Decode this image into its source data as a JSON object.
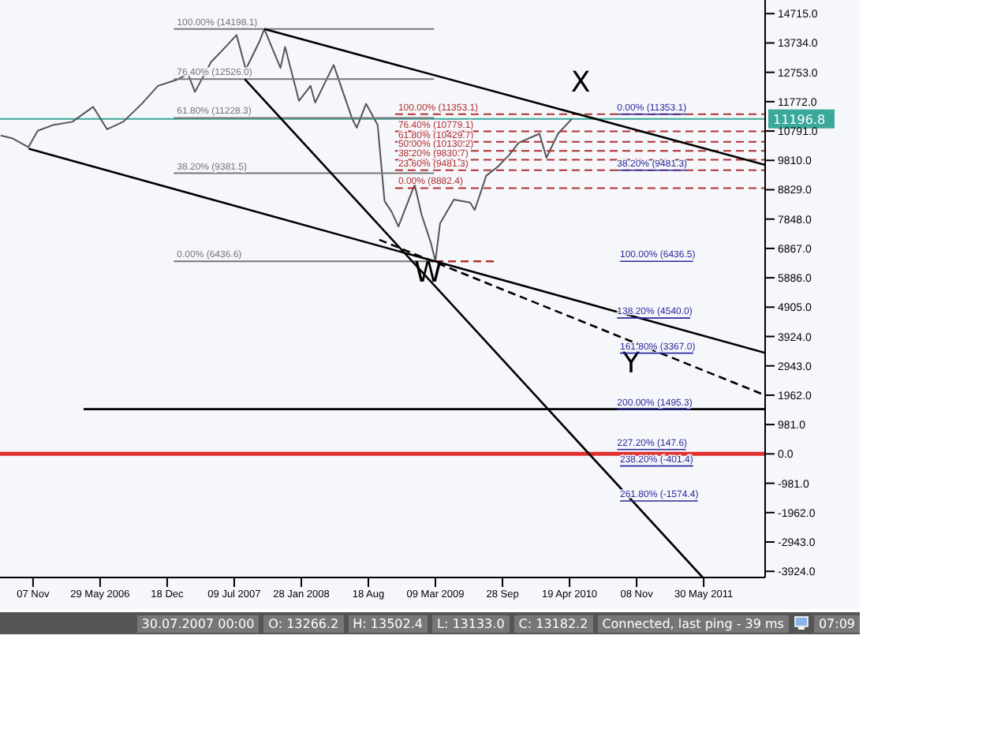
{
  "chart_data": {
    "type": "line",
    "xlim": [
      "2005-07-30",
      "2011-12-02"
    ],
    "xticks": [
      {
        "value": "2005-11-07",
        "label": "07 Nov"
      },
      {
        "value": "2006-05-29",
        "label": "29 May 2006"
      },
      {
        "value": "2006-12-18",
        "label": "18 Dec"
      },
      {
        "value": "2007-07-09",
        "label": "09 Jul 2007"
      },
      {
        "value": "2008-01-28",
        "label": "28 Jan 2008"
      },
      {
        "value": "2008-08-18",
        "label": "18 Aug"
      },
      {
        "value": "2009-03-09",
        "label": "09 Mar 2009"
      },
      {
        "value": "2009-09-28",
        "label": "28 Sep"
      },
      {
        "value": "2010-04-19",
        "label": "19 Apr 2010"
      },
      {
        "value": "2010-11-08",
        "label": "08 Nov"
      },
      {
        "value": "2011-05-30",
        "label": "30 May 2011"
      }
    ],
    "ylim": [
      -4130,
      15170
    ],
    "yticks": [
      {
        "value": 14715,
        "label": "14715.0"
      },
      {
        "value": 13734,
        "label": "13734.0"
      },
      {
        "value": 12753,
        "label": "12753.0"
      },
      {
        "value": 11772,
        "label": "11772.0"
      },
      {
        "value": 10791,
        "label": "10791.0"
      },
      {
        "value": 9810,
        "label": "9810.0"
      },
      {
        "value": 8829,
        "label": "8829.0"
      },
      {
        "value": 7848,
        "label": "7848.0"
      },
      {
        "value": 6867,
        "label": "6867.0"
      },
      {
        "value": 5886,
        "label": "5886.0"
      },
      {
        "value": 4905,
        "label": "4905.0"
      },
      {
        "value": 3924,
        "label": "3924.0"
      },
      {
        "value": 2943,
        "label": "2943.0"
      },
      {
        "value": 1962,
        "label": "1962.0"
      },
      {
        "value": 981,
        "label": "981.0"
      },
      {
        "value": 0,
        "label": "0.0"
      },
      {
        "value": -981,
        "label": "-981.0"
      },
      {
        "value": -1962,
        "label": "-1962.0"
      },
      {
        "value": -2943,
        "label": "-2943.0"
      },
      {
        "value": -3924,
        "label": "-3924.0"
      }
    ],
    "series": [
      {
        "color": "#555555",
        "x": [
          "2005-08-01",
          "2005-09-05",
          "2005-10-24",
          "2005-11-21",
          "2006-01-09",
          "2006-03-06",
          "2006-05-08",
          "2006-06-19",
          "2006-08-07",
          "2006-10-02",
          "2006-11-20",
          "2007-01-15",
          "2007-02-19",
          "2007-03-12",
          "2007-04-30",
          "2007-06-04",
          "2007-07-16",
          "2007-08-13",
          "2007-09-24",
          "2007-10-08",
          "2007-11-26",
          "2007-12-10",
          "2008-01-21",
          "2008-02-25",
          "2008-03-10",
          "2008-05-05",
          "2008-06-30",
          "2008-07-14",
          "2008-08-11",
          "2008-09-15",
          "2008-10-06",
          "2008-10-27",
          "2008-11-17",
          "2009-01-05",
          "2009-01-26",
          "2009-02-23",
          "2009-03-09",
          "2009-03-23",
          "2009-05-04",
          "2009-06-22",
          "2009-07-06",
          "2009-08-10",
          "2009-09-14",
          "2009-10-19",
          "2009-11-16",
          "2010-01-18",
          "2010-02-08",
          "2010-03-15",
          "2010-04-26"
        ],
        "values": [
          10640,
          10550,
          10250,
          10800,
          11000,
          11100,
          11600,
          10850,
          11100,
          11700,
          12300,
          12500,
          12700,
          12100,
          13100,
          13500,
          14000,
          12850,
          13800,
          14198,
          12900,
          13600,
          11800,
          12300,
          11740,
          13000,
          11200,
          10900,
          11700,
          11000,
          8450,
          8100,
          7600,
          9000,
          8000,
          7060,
          6440,
          7700,
          8500,
          8400,
          8150,
          9300,
          9600,
          10000,
          10400,
          10700,
          9900,
          10700,
          11200
        ]
      },
      {
        "name": "100.00% (14198.1)",
        "color": "#777777",
        "x": [
          "2007-01-07",
          "2009-03-05"
        ],
        "values": [
          14198.1,
          14198.1
        ]
      },
      {
        "name": "76.40% (12526.0)",
        "color": "#777777",
        "x": [
          "2007-01-07",
          "2009-03-05"
        ],
        "values": [
          12526.0,
          12526.0
        ]
      },
      {
        "name": "61.80% (11228.3)",
        "color": "#777777",
        "x": [
          "2007-01-07",
          "2009-03-05"
        ],
        "values": [
          11228.3,
          11228.3
        ]
      },
      {
        "name": "38.20% (9381.5)",
        "color": "#777777",
        "x": [
          "2007-01-07",
          "2009-03-05"
        ],
        "values": [
          9381.5,
          9381.5
        ]
      },
      {
        "name": "0.00% (6436.6)",
        "color": "#777777",
        "x": [
          "2007-01-07",
          "2009-03-05"
        ],
        "values": [
          6436.6,
          6436.6
        ]
      },
      {
        "name": "100.00% (11353.1)",
        "color": "#b03030",
        "line_style": "dashed",
        "x": [
          "2008-11-07",
          "2011-12-02"
        ],
        "values": [
          11353.1,
          11353.1
        ]
      },
      {
        "name": "76.40% (10779.1)",
        "color": "#b03030",
        "line_style": "dashed",
        "x": [
          "2008-11-07",
          "2011-12-02"
        ],
        "values": [
          10779.1,
          10779.1
        ]
      },
      {
        "name": "61.80% (10429.7)",
        "color": "#b03030",
        "line_style": "dashed",
        "x": [
          "2008-11-07",
          "2011-12-02"
        ],
        "values": [
          10429.7,
          10429.7
        ]
      },
      {
        "name": "50.00% (10130.2)",
        "color": "#b03030",
        "line_style": "dashed",
        "x": [
          "2008-11-07",
          "2011-12-02"
        ],
        "values": [
          10130.2,
          10130.2
        ]
      },
      {
        "name": "38.20% (9830.7)",
        "color": "#b03030",
        "line_style": "dashed",
        "x": [
          "2008-11-07",
          "2011-12-02"
        ],
        "values": [
          9830.7,
          9830.7
        ]
      },
      {
        "name": "23.60% (9481.3)",
        "color": "#b03030",
        "line_style": "dashed",
        "x": [
          "2008-11-07",
          "2011-12-02"
        ],
        "values": [
          9481.3,
          9481.3
        ]
      },
      {
        "name": "0.00% (8882.4)",
        "color": "#b03030",
        "line_style": "dashed",
        "x": [
          "2008-11-07",
          "2011-12-02"
        ],
        "values": [
          8882.4,
          8882.4
        ]
      },
      {
        "color": "#b03030",
        "line_style": "dashed",
        "x": [
          "2009-03-09",
          "2009-09-04"
        ],
        "values": [
          6436.6,
          6436.6
        ]
      },
      {
        "color": "#000000",
        "x": [
          "2007-10-08",
          "2011-12-02"
        ],
        "values": [
          14198,
          9660
        ]
      },
      {
        "color": "#000000",
        "x": [
          "2007-08-10",
          "2011-05-27"
        ],
        "values": [
          12526,
          -4130
        ]
      },
      {
        "color": "#000000",
        "x": [
          "2005-10-25",
          "2011-12-02"
        ],
        "values": [
          10200,
          3378
        ]
      },
      {
        "color": "#000000",
        "line_style": "dashed",
        "x": [
          "2008-09-20",
          "2011-12-02"
        ],
        "values": [
          7157,
          1960
        ]
      },
      {
        "color": "#000000",
        "x": [
          "2006-04-09",
          "2011-12-02"
        ],
        "values": [
          1495.3,
          1495.3
        ]
      }
    ],
    "ref_lines": [
      {
        "axis": "y",
        "value": 11196.8,
        "label": "11196.8",
        "color": "#3aa89a"
      },
      {
        "axis": "y",
        "value": 0,
        "color": "#e03030"
      }
    ],
    "annotations": [
      {
        "text": "W",
        "x": "2009-02-15",
        "y": 5750
      },
      {
        "text": "0.00% (11353.1)",
        "x": "2010-09-10",
        "y": 11353.1
      },
      {
        "text": "38.20% (9481.3)",
        "x": "2010-09-10",
        "y": 9481.3
      },
      {
        "text": "138.20% (4540.0)",
        "x": "2010-09-10",
        "y": 4540.0
      },
      {
        "text": "200.00% (1495.3)",
        "x": "2010-09-10",
        "y": 1495.3
      },
      {
        "text": "227.20% (147.6)",
        "x": "2010-09-10",
        "y": 147.6
      },
      "X",
      "Y",
      "100.00% (6436.5)",
      "161.80% (3367.0)",
      "238.20% (-401.4)",
      "261.80% (-1574.4)",
      "30.07.2007 00:00",
      "O: 13266.2",
      "H: 13502.4",
      "L: 13133.0",
      "C: 13182.2",
      "Connected, last ping - 39 ms",
      "07:09"
    ]
  }
}
